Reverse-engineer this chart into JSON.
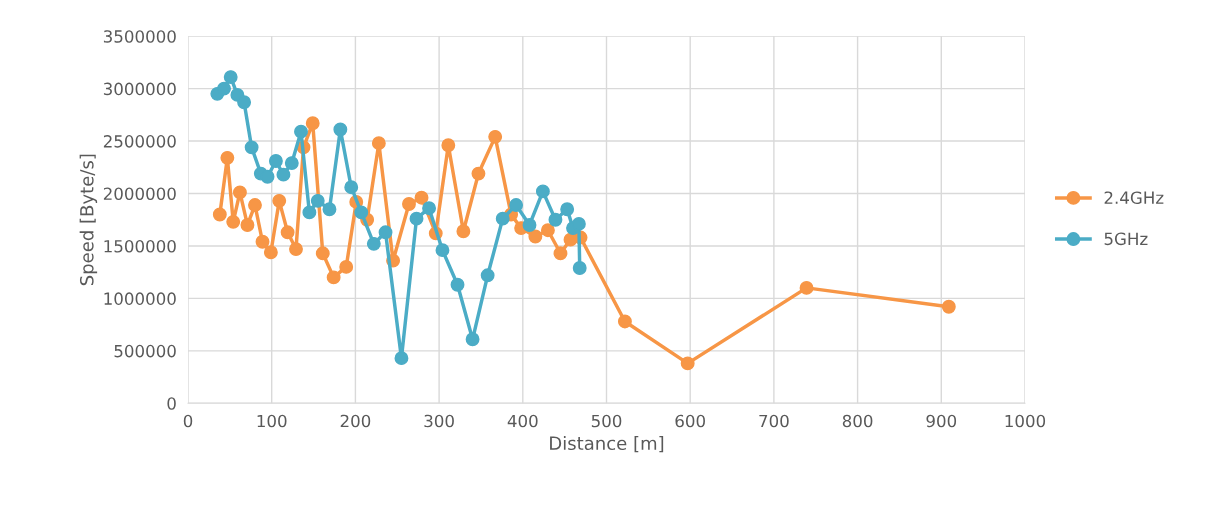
{
  "chart_data": {
    "type": "line",
    "xlabel": "Distance [m]",
    "ylabel": "Speed [Byte/s]",
    "xlim": [
      0,
      1000
    ],
    "xticks": [
      0,
      100,
      200,
      300,
      400,
      500,
      600,
      700,
      800,
      900,
      1000
    ],
    "ylim": [
      0,
      3500000
    ],
    "yticks": [
      0,
      500000,
      1000000,
      1500000,
      2000000,
      2500000,
      3000000,
      3500000
    ],
    "grid": true,
    "legend": "right",
    "marker": "circle",
    "line_style": "solid",
    "series": [
      {
        "name": "2.4GHz",
        "color": "#f79646",
        "x": [
          38,
          47,
          54,
          62,
          71,
          80,
          89,
          99,
          109,
          119,
          129,
          138,
          149,
          161,
          174,
          189,
          201,
          214,
          228,
          245,
          264,
          279,
          296,
          311,
          329,
          347,
          367,
          386,
          398,
          415,
          430,
          445,
          457,
          469,
          522,
          597,
          739,
          909
        ],
        "values": [
          1800000,
          2340000,
          1730000,
          2010000,
          1700000,
          1890000,
          1540000,
          1440000,
          1930000,
          1630000,
          1470000,
          2440000,
          2670000,
          1430000,
          1200000,
          1300000,
          1920000,
          1750000,
          2480000,
          1360000,
          1900000,
          1960000,
          1620000,
          2460000,
          1640000,
          2190000,
          2540000,
          1800000,
          1670000,
          1590000,
          1650000,
          1430000,
          1560000,
          1580000,
          780000,
          380000,
          1100000,
          920000
        ]
      },
      {
        "name": "5GHz",
        "color": "#4bacc6",
        "x": [
          35,
          43,
          51,
          59,
          67,
          76,
          87,
          95,
          105,
          114,
          124,
          135,
          145,
          155,
          169,
          182,
          195,
          207,
          222,
          236,
          255,
          273,
          288,
          304,
          322,
          340,
          358,
          376,
          392,
          408,
          424,
          439,
          453,
          460,
          467,
          468
        ],
        "values": [
          2950000,
          3000000,
          3110000,
          2940000,
          2870000,
          2440000,
          2190000,
          2160000,
          2310000,
          2180000,
          2290000,
          2590000,
          1820000,
          1930000,
          1850000,
          2610000,
          2060000,
          1820000,
          1520000,
          1630000,
          430000,
          1760000,
          1860000,
          1460000,
          1130000,
          610000,
          1220000,
          1760000,
          1890000,
          1700000,
          2020000,
          1750000,
          1850000,
          1670000,
          1710000,
          1290000
        ]
      }
    ]
  }
}
